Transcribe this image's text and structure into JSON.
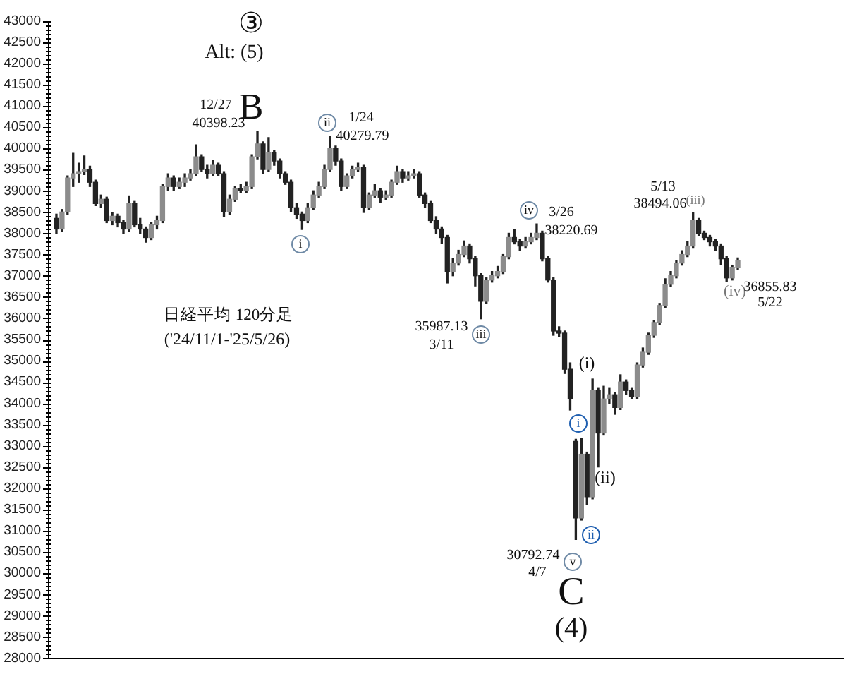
{
  "chart_data": {
    "type": "candlestick",
    "title": "日経平均 120分足",
    "subtitle": "('24/11/1-'25/5/26)",
    "categories": [
      null,
      null,
      null,
      null,
      null,
      null,
      null,
      null,
      null,
      null,
      null,
      null,
      null,
      null,
      null,
      null,
      null,
      null,
      null,
      null,
      null,
      null,
      null,
      null,
      null,
      null,
      null,
      null,
      null,
      null,
      null,
      null,
      null,
      null,
      null,
      null,
      null,
      null,
      null,
      null,
      null,
      null,
      null,
      null,
      null,
      null,
      null,
      null,
      null,
      null,
      null,
      null,
      null,
      null,
      null,
      null,
      null,
      null,
      null,
      null,
      null,
      null,
      null,
      null,
      null,
      null,
      null,
      null,
      null,
      null,
      null,
      null,
      null,
      null,
      null,
      null,
      null,
      null,
      null,
      null,
      null,
      null,
      null,
      null,
      null,
      null,
      null,
      null,
      null,
      null,
      null,
      null,
      null,
      null,
      null,
      null,
      null,
      null,
      null,
      null,
      null,
      null,
      null,
      null,
      null,
      null,
      null,
      null,
      null,
      null,
      null,
      null,
      null,
      null,
      null,
      null,
      null,
      null,
      null,
      null,
      null,
      null,
      null
    ],
    "ohlc": [
      [
        38350,
        38450,
        38000,
        38100
      ],
      [
        38100,
        38560,
        38050,
        38500
      ],
      [
        38500,
        39350,
        38450,
        39300
      ],
      [
        39300,
        39880,
        39100,
        39400
      ],
      [
        39400,
        39650,
        39200,
        39450
      ],
      [
        39450,
        39820,
        39380,
        39500
      ],
      [
        39500,
        39580,
        39100,
        39200
      ],
      [
        39200,
        39250,
        38650,
        38700
      ],
      [
        38700,
        38900,
        38600,
        38800
      ],
      [
        38800,
        38850,
        38250,
        38300
      ],
      [
        38300,
        38480,
        38200,
        38400
      ],
      [
        38400,
        38450,
        38150,
        38250
      ],
      [
        38250,
        38300,
        37990,
        38100
      ],
      [
        38100,
        38880,
        38050,
        38700
      ],
      [
        38700,
        38750,
        38150,
        38200
      ],
      [
        38200,
        38350,
        38000,
        38100
      ],
      [
        38100,
        38150,
        37790,
        37900
      ],
      [
        37900,
        38250,
        37850,
        38200
      ],
      [
        38200,
        38400,
        38100,
        38300
      ],
      [
        38300,
        39150,
        38250,
        39100
      ],
      [
        39100,
        39400,
        39000,
        39300
      ],
      [
        39300,
        39350,
        39000,
        39100
      ],
      [
        39100,
        39300,
        39050,
        39200
      ],
      [
        39200,
        39400,
        39100,
        39300
      ],
      [
        39300,
        39500,
        39250,
        39400
      ],
      [
        39400,
        40080,
        39350,
        39800
      ],
      [
        39800,
        39850,
        39450,
        39500
      ],
      [
        39500,
        39600,
        39300,
        39400
      ],
      [
        39400,
        39710,
        39350,
        39600
      ],
      [
        39600,
        39650,
        39350,
        39400
      ],
      [
        39400,
        39450,
        38390,
        38500
      ],
      [
        38500,
        38900,
        38450,
        38800
      ],
      [
        38800,
        39100,
        38750,
        39050
      ],
      [
        39050,
        39150,
        38950,
        39000
      ],
      [
        39000,
        39200,
        38950,
        39100
      ],
      [
        39100,
        39850,
        39050,
        39800
      ],
      [
        39800,
        40398.23,
        39750,
        40100
      ],
      [
        40100,
        40150,
        39400,
        39500
      ],
      [
        39500,
        40250,
        39450,
        39900
      ],
      [
        39900,
        39950,
        39600,
        39700
      ],
      [
        39700,
        39750,
        39300,
        39400
      ],
      [
        39400,
        39450,
        39150,
        39200
      ],
      [
        39200,
        39250,
        38500,
        38600
      ],
      [
        38600,
        38700,
        38350,
        38450
      ],
      [
        38450,
        38500,
        38090,
        38300
      ],
      [
        38300,
        38700,
        38250,
        38600
      ],
      [
        38600,
        39000,
        38550,
        38900
      ],
      [
        38900,
        39200,
        38850,
        39100
      ],
      [
        39100,
        39600,
        39050,
        39500
      ],
      [
        39500,
        40279.79,
        39450,
        40000
      ],
      [
        40000,
        40050,
        39600,
        39700
      ],
      [
        39700,
        39750,
        39000,
        39100
      ],
      [
        39100,
        39400,
        39050,
        39350
      ],
      [
        39350,
        39580,
        39300,
        39500
      ],
      [
        39500,
        39650,
        39450,
        39550
      ],
      [
        39550,
        39600,
        38490,
        38600
      ],
      [
        38600,
        38950,
        38550,
        38900
      ],
      [
        38900,
        39150,
        38850,
        39000
      ],
      [
        39000,
        39050,
        38720,
        38850
      ],
      [
        38850,
        39000,
        38800,
        38900
      ],
      [
        38900,
        39250,
        38850,
        39200
      ],
      [
        39200,
        39580,
        39150,
        39450
      ],
      [
        39450,
        39500,
        39200,
        39300
      ],
      [
        39300,
        39450,
        39250,
        39350
      ],
      [
        39350,
        39500,
        39300,
        39400
      ],
      [
        39400,
        39450,
        38850,
        38900
      ],
      [
        38900,
        38950,
        38600,
        38700
      ],
      [
        38700,
        38750,
        38250,
        38300
      ],
      [
        38300,
        38390,
        38000,
        38100
      ],
      [
        38100,
        38150,
        37760,
        37900
      ],
      [
        37900,
        37950,
        36830,
        37100
      ],
      [
        37100,
        37400,
        37000,
        37300
      ],
      [
        37300,
        37600,
        37250,
        37500
      ],
      [
        37500,
        37820,
        37450,
        37700
      ],
      [
        37700,
        37750,
        37300,
        37400
      ],
      [
        37400,
        37450,
        36760,
        37000
      ],
      [
        37000,
        37050,
        35987.13,
        36400
      ],
      [
        36400,
        36950,
        36350,
        36900
      ],
      [
        36900,
        37100,
        36850,
        37000
      ],
      [
        37000,
        37220,
        36950,
        37100
      ],
      [
        37100,
        37500,
        37050,
        37450
      ],
      [
        37450,
        38000,
        37400,
        37900
      ],
      [
        37900,
        38090,
        37750,
        37800
      ],
      [
        37800,
        37850,
        37600,
        37700
      ],
      [
        37700,
        37900,
        37650,
        37800
      ],
      [
        37800,
        38000,
        37750,
        37900
      ],
      [
        37900,
        38220.69,
        37850,
        38000
      ],
      [
        38000,
        38050,
        37350,
        37400
      ],
      [
        37400,
        37450,
        36850,
        36900
      ],
      [
        36900,
        36950,
        35600,
        35700
      ],
      [
        35700,
        35800,
        35570,
        35650
      ],
      [
        35650,
        35700,
        34700,
        34800
      ],
      [
        34800,
        34950,
        33840,
        34100
      ],
      [
        33100,
        33150,
        30792.74,
        31300
      ],
      [
        31300,
        33180,
        31250,
        32800
      ],
      [
        32800,
        32850,
        31610,
        31800
      ],
      [
        31800,
        34570,
        31750,
        34300
      ],
      [
        34300,
        34350,
        32500,
        33300
      ],
      [
        33300,
        34400,
        33250,
        34100
      ],
      [
        34100,
        34350,
        34000,
        34200
      ],
      [
        34200,
        34250,
        33740,
        33900
      ],
      [
        33900,
        34670,
        33850,
        34500
      ],
      [
        34500,
        34550,
        34200,
        34300
      ],
      [
        34300,
        34350,
        34100,
        34150
      ],
      [
        34150,
        34950,
        34100,
        34900
      ],
      [
        34900,
        35300,
        34850,
        35200
      ],
      [
        35200,
        35650,
        35150,
        35600
      ],
      [
        35600,
        35950,
        35550,
        35900
      ],
      [
        35900,
        36350,
        35850,
        36300
      ],
      [
        36300,
        36930,
        36250,
        36800
      ],
      [
        36800,
        37100,
        36750,
        37000
      ],
      [
        37000,
        37350,
        36950,
        37300
      ],
      [
        37300,
        37590,
        37250,
        37500
      ],
      [
        37500,
        37800,
        37450,
        37700
      ],
      [
        37700,
        38494.06,
        37650,
        38300
      ],
      [
        38300,
        38350,
        37950,
        38000
      ],
      [
        38000,
        38050,
        37850,
        37900
      ],
      [
        37900,
        37950,
        37700,
        37800
      ],
      [
        37800,
        37850,
        37600,
        37700
      ],
      [
        37700,
        37750,
        37260,
        37400
      ],
      [
        37400,
        37450,
        36855.83,
        36950
      ],
      [
        36950,
        37250,
        36900,
        37200
      ],
      [
        37200,
        37420,
        37150,
        37350
      ]
    ],
    "color": "#222222",
    "colors": [
      "#222222",
      "#8c8c8c",
      "#8c8c8c",
      "#8c8c8c",
      "#8c8c8c",
      "#8c8c8c",
      "#222222",
      "#222222",
      "#8c8c8c",
      "#222222",
      "#8c8c8c",
      "#222222",
      "#222222",
      "#8c8c8c",
      "#222222",
      "#222222",
      "#222222",
      "#8c8c8c",
      "#8c8c8c",
      "#8c8c8c",
      "#8c8c8c",
      "#222222",
      "#8c8c8c",
      "#8c8c8c",
      "#8c8c8c",
      "#8c8c8c",
      "#222222",
      "#222222",
      "#8c8c8c",
      "#222222",
      "#222222",
      "#8c8c8c",
      "#8c8c8c",
      "#222222",
      "#8c8c8c",
      "#8c8c8c",
      "#8c8c8c",
      "#222222",
      "#8c8c8c",
      "#222222",
      "#222222",
      "#222222",
      "#222222",
      "#222222",
      "#222222",
      "#8c8c8c",
      "#8c8c8c",
      "#8c8c8c",
      "#8c8c8c",
      "#8c8c8c",
      "#222222",
      "#222222",
      "#8c8c8c",
      "#8c8c8c",
      "#8c8c8c",
      "#222222",
      "#8c8c8c",
      "#8c8c8c",
      "#222222",
      "#8c8c8c",
      "#8c8c8c",
      "#8c8c8c",
      "#222222",
      "#8c8c8c",
      "#8c8c8c",
      "#222222",
      "#222222",
      "#222222",
      "#222222",
      "#222222",
      "#222222",
      "#8c8c8c",
      "#8c8c8c",
      "#8c8c8c",
      "#222222",
      "#222222",
      "#222222",
      "#8c8c8c",
      "#8c8c8c",
      "#8c8c8c",
      "#8c8c8c",
      "#8c8c8c",
      "#222222",
      "#222222",
      "#8c8c8c",
      "#8c8c8c",
      "#8c8c8c",
      "#222222",
      "#222222",
      "#222222",
      "#222222",
      "#222222",
      "#222222",
      "#222222",
      "#8c8c8c",
      "#222222",
      "#8c8c8c",
      "#222222",
      "#8c8c8c",
      "#8c8c8c",
      "#222222",
      "#8c8c8c",
      "#222222",
      "#222222",
      "#8c8c8c",
      "#8c8c8c",
      "#8c8c8c",
      "#8c8c8c",
      "#8c8c8c",
      "#8c8c8c",
      "#8c8c8c",
      "#8c8c8c",
      "#8c8c8c",
      "#8c8c8c",
      "#8c8c8c",
      "#222222",
      "#222222",
      "#222222",
      "#222222",
      "#222222",
      "#222222",
      "#8c8c8c",
      "#8c8c8c"
    ],
    "ylim": [
      28000,
      43000
    ],
    "yticks": [
      28000,
      {
        "value": 28100,
        "label": null
      },
      {
        "value": 28200,
        "label": null
      },
      {
        "value": 28300,
        "label": null
      },
      {
        "value": 28400,
        "label": null
      },
      28500,
      {
        "value": 28600,
        "label": null
      },
      {
        "value": 28700,
        "label": null
      },
      {
        "value": 28800,
        "label": null
      },
      {
        "value": 28900,
        "label": null
      },
      29000,
      {
        "value": 29100,
        "label": null
      },
      {
        "value": 29200,
        "label": null
      },
      {
        "value": 29300,
        "label": null
      },
      {
        "value": 29400,
        "label": null
      },
      29500,
      {
        "value": 29600,
        "label": null
      },
      {
        "value": 29700,
        "label": null
      },
      {
        "value": 29800,
        "label": null
      },
      {
        "value": 29900,
        "label": null
      },
      30000,
      {
        "value": 30100,
        "label": null
      },
      {
        "value": 30200,
        "label": null
      },
      {
        "value": 30300,
        "label": null
      },
      {
        "value": 30400,
        "label": null
      },
      30500,
      {
        "value": 30600,
        "label": null
      },
      {
        "value": 30700,
        "label": null
      },
      {
        "value": 30800,
        "label": null
      },
      {
        "value": 30900,
        "label": null
      },
      31000,
      {
        "value": 31100,
        "label": null
      },
      {
        "value": 31200,
        "label": null
      },
      {
        "value": 31300,
        "label": null
      },
      {
        "value": 31400,
        "label": null
      },
      31500,
      {
        "value": 31600,
        "label": null
      },
      {
        "value": 31700,
        "label": null
      },
      {
        "value": 31800,
        "label": null
      },
      {
        "value": 31900,
        "label": null
      },
      32000,
      {
        "value": 32100,
        "label": null
      },
      {
        "value": 32200,
        "label": null
      },
      {
        "value": 32300,
        "label": null
      },
      {
        "value": 32400,
        "label": null
      },
      32500,
      {
        "value": 32600,
        "label": null
      },
      {
        "value": 32700,
        "label": null
      },
      {
        "value": 32800,
        "label": null
      },
      {
        "value": 32900,
        "label": null
      },
      33000,
      {
        "value": 33100,
        "label": null
      },
      {
        "value": 33200,
        "label": null
      },
      {
        "value": 33300,
        "label": null
      },
      {
        "value": 33400,
        "label": null
      },
      33500,
      {
        "value": 33600,
        "label": null
      },
      {
        "value": 33700,
        "label": null
      },
      {
        "value": 33800,
        "label": null
      },
      {
        "value": 33900,
        "label": null
      },
      34000,
      {
        "value": 34100,
        "label": null
      },
      {
        "value": 34200,
        "label": null
      },
      {
        "value": 34300,
        "label": null
      },
      {
        "value": 34400,
        "label": null
      },
      34500,
      {
        "value": 34600,
        "label": null
      },
      {
        "value": 34700,
        "label": null
      },
      {
        "value": 34800,
        "label": null
      },
      {
        "value": 34900,
        "label": null
      },
      35000,
      {
        "value": 35100,
        "label": null
      },
      {
        "value": 35200,
        "label": null
      },
      {
        "value": 35300,
        "label": null
      },
      {
        "value": 35400,
        "label": null
      },
      35500,
      {
        "value": 35600,
        "label": null
      },
      {
        "value": 35700,
        "label": null
      },
      {
        "value": 35800,
        "label": null
      },
      {
        "value": 35900,
        "label": null
      },
      36000,
      {
        "value": 36100,
        "label": null
      },
      {
        "value": 36200,
        "label": null
      },
      {
        "value": 36300,
        "label": null
      },
      {
        "value": 36400,
        "label": null
      },
      36500,
      {
        "value": 36600,
        "label": null
      },
      {
        "value": 36700,
        "label": null
      },
      {
        "value": 36800,
        "label": null
      },
      {
        "value": 36900,
        "label": null
      },
      37000,
      {
        "value": 37100,
        "label": null
      },
      {
        "value": 37200,
        "label": null
      },
      {
        "value": 37300,
        "label": null
      },
      {
        "value": 37400,
        "label": null
      },
      37500,
      {
        "value": 37600,
        "label": null
      },
      {
        "value": 37700,
        "label": null
      },
      {
        "value": 37800,
        "label": null
      },
      {
        "value": 37900,
        "label": null
      },
      38000,
      {
        "value": 38100,
        "label": null
      },
      {
        "value": 38200,
        "label": null
      },
      {
        "value": 38300,
        "label": null
      },
      {
        "value": 38400,
        "label": null
      },
      38500,
      {
        "value": 38600,
        "label": null
      },
      {
        "value": 38700,
        "label": null
      },
      {
        "value": 38800,
        "label": null
      },
      {
        "value": 38900,
        "label": null
      },
      39000,
      {
        "value": 39100,
        "label": null
      },
      {
        "value": 39200,
        "label": null
      },
      {
        "value": 39300,
        "label": null
      },
      {
        "value": 39400,
        "label": null
      },
      39500,
      {
        "value": 39600,
        "label": null
      },
      {
        "value": 39700,
        "label": null
      },
      {
        "value": 39800,
        "label": null
      },
      {
        "value": 39900,
        "label": null
      },
      40000,
      {
        "value": 40100,
        "label": null
      },
      {
        "value": 40200,
        "label": null
      },
      {
        "value": 40300,
        "label": null
      },
      {
        "value": 40400,
        "label": null
      },
      40500,
      {
        "value": 40600,
        "label": null
      },
      {
        "value": 40700,
        "label": null
      },
      {
        "value": 40800,
        "label": null
      },
      {
        "value": 40900,
        "label": null
      },
      41000,
      {
        "value": 41100,
        "label": null
      },
      {
        "value": 41200,
        "label": null
      },
      {
        "value": 41300,
        "label": null
      },
      {
        "value": 41400,
        "label": null
      },
      41500,
      {
        "value": 41600,
        "label": null
      },
      {
        "value": 41700,
        "label": null
      },
      {
        "value": 41800,
        "label": null
      },
      {
        "value": 41900,
        "label": null
      },
      42000,
      {
        "value": 42100,
        "label": null
      },
      {
        "value": 42200,
        "label": null
      },
      {
        "value": 42300,
        "label": null
      },
      {
        "value": 42400,
        "label": null
      },
      42500,
      {
        "value": 42600,
        "label": null
      },
      {
        "value": 42700,
        "label": null
      },
      {
        "value": 42800,
        "label": null
      },
      {
        "value": 42900,
        "label": null
      },
      43000
    ],
    "tick_labels": "y",
    "grid": false,
    "legend": false,
    "annotations": [
      "③",
      "Alt: (5)",
      "12/27",
      "40398.23",
      "B",
      "ii",
      "1/24",
      "40279.79",
      "i",
      "35987.13",
      "3/11",
      "iii",
      "iv",
      "3/26",
      "38220.69",
      "(i)",
      "i",
      "(ii)",
      "ii",
      "30792.74",
      "4/7",
      "v",
      "C",
      "(4)",
      "5/13",
      "38494.06",
      "(iii)",
      "(iv)",
      "36855.83",
      "5/22"
    ]
  }
}
